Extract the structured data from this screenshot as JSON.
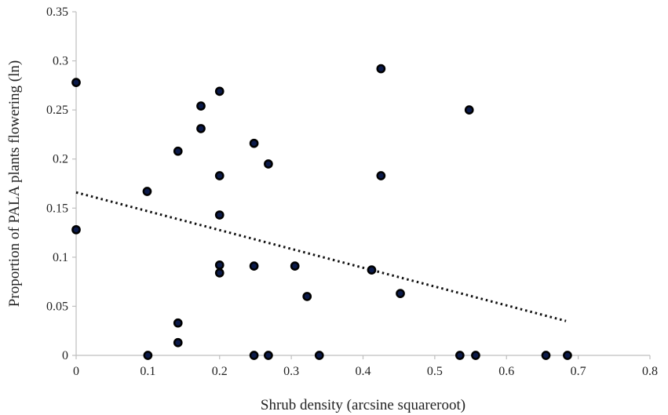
{
  "chart_data": {
    "type": "scatter",
    "title": "",
    "xlabel": "Shrub density (arcsine squareroot)",
    "ylabel": "Proportion of PALA plants flowering (ln)",
    "xlim": [
      0,
      0.8
    ],
    "ylim": [
      0,
      0.35
    ],
    "x_ticks": [
      0,
      0.1,
      0.2,
      0.3,
      0.4,
      0.5,
      0.6,
      0.7,
      0.8
    ],
    "x_tick_labels": [
      "0",
      "0.1",
      "0.2",
      "0.3",
      "0.4",
      "0.5",
      "0.6",
      "0.7",
      "0.8"
    ],
    "y_ticks": [
      0,
      0.05,
      0.1,
      0.15,
      0.2,
      0.25,
      0.3,
      0.35
    ],
    "y_tick_labels": [
      "0",
      "0.05",
      "0.1",
      "0.15",
      "0.2",
      "0.25",
      "0.3",
      "0.35"
    ],
    "grid": false,
    "legend": "none",
    "marker_fill_color": "#0b1a4a",
    "marker_edge_color": "#000000",
    "trendline": {
      "type": "linear",
      "x": [
        0,
        0.683
      ],
      "y": [
        0.166,
        0.035
      ],
      "style": "dotted",
      "color": "#111111"
    },
    "series": [
      {
        "points": [
          {
            "x": 0.0,
            "y": 0.278
          },
          {
            "x": 0.0,
            "y": 0.128
          },
          {
            "x": 0.099,
            "y": 0.167
          },
          {
            "x": 0.1,
            "y": 0.0
          },
          {
            "x": 0.142,
            "y": 0.208
          },
          {
            "x": 0.142,
            "y": 0.033
          },
          {
            "x": 0.142,
            "y": 0.013
          },
          {
            "x": 0.174,
            "y": 0.254
          },
          {
            "x": 0.174,
            "y": 0.231
          },
          {
            "x": 0.2,
            "y": 0.269
          },
          {
            "x": 0.2,
            "y": 0.183
          },
          {
            "x": 0.2,
            "y": 0.143
          },
          {
            "x": 0.2,
            "y": 0.092
          },
          {
            "x": 0.2,
            "y": 0.084
          },
          {
            "x": 0.248,
            "y": 0.216
          },
          {
            "x": 0.248,
            "y": 0.091
          },
          {
            "x": 0.248,
            "y": 0.0
          },
          {
            "x": 0.268,
            "y": 0.195
          },
          {
            "x": 0.268,
            "y": 0.0
          },
          {
            "x": 0.305,
            "y": 0.091
          },
          {
            "x": 0.322,
            "y": 0.06
          },
          {
            "x": 0.339,
            "y": 0.0
          },
          {
            "x": 0.412,
            "y": 0.087
          },
          {
            "x": 0.425,
            "y": 0.292
          },
          {
            "x": 0.425,
            "y": 0.183
          },
          {
            "x": 0.452,
            "y": 0.063
          },
          {
            "x": 0.535,
            "y": 0.0
          },
          {
            "x": 0.548,
            "y": 0.25
          },
          {
            "x": 0.557,
            "y": 0.0
          },
          {
            "x": 0.655,
            "y": 0.0
          },
          {
            "x": 0.685,
            "y": 0.0
          }
        ]
      }
    ]
  }
}
